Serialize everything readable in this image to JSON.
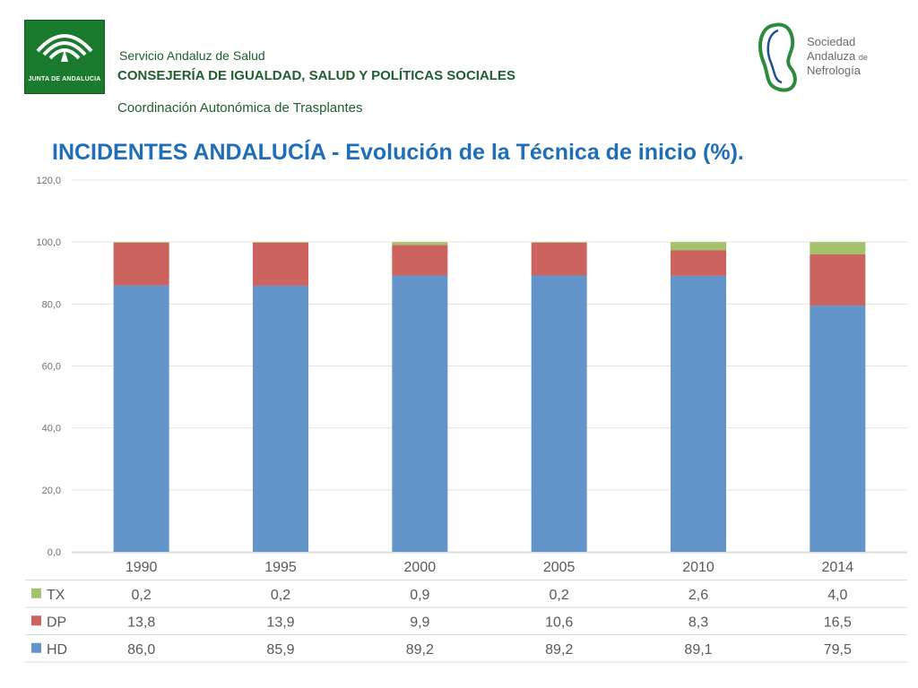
{
  "header": {
    "junta_logo_text": "JUNTA DE ANDALUCIA",
    "service_name": "Servicio Andaluz de Salud",
    "ministry": "CONSEJERÍA DE IGUALDAD, SALUD Y POLÍTICAS SOCIALES",
    "coordination": "Coordinación Autonómica de Trasplantes",
    "society_line1": "Sociedad",
    "society_line2": "Andaluza",
    "society_de": "de",
    "society_line3": "Nefrología"
  },
  "colors": {
    "hd": "#6395cb",
    "dp": "#cc635f",
    "tx": "#a4c26c",
    "junta_green": "#1a7a2e",
    "title_blue": "#1f6fb8"
  },
  "chart_data": {
    "type": "bar",
    "stacked": true,
    "title": "INCIDENTES ANDALUCÍA - Evolución de la Técnica de inicio (%).",
    "categories": [
      "1990",
      "1995",
      "2000",
      "2005",
      "2010",
      "2014"
    ],
    "ylim": [
      0,
      120
    ],
    "yticks": [
      "0,0",
      "20,0",
      "40,0",
      "60,0",
      "80,0",
      "100,0",
      "120,0"
    ],
    "ytick_values": [
      0,
      20,
      40,
      60,
      80,
      100,
      120
    ],
    "grid": true,
    "series": [
      {
        "name": "HD",
        "values": [
          86.0,
          85.9,
          89.2,
          89.2,
          89.1,
          79.5
        ],
        "labels": [
          "86,0",
          "85,9",
          "89,2",
          "89,2",
          "89,1",
          "79,5"
        ]
      },
      {
        "name": "DP",
        "values": [
          13.8,
          13.9,
          9.9,
          10.6,
          8.3,
          16.5
        ],
        "labels": [
          "13,8",
          "13,9",
          "9,9",
          "10,6",
          "8,3",
          "16,5"
        ]
      },
      {
        "name": "TX",
        "values": [
          0.2,
          0.2,
          0.9,
          0.2,
          2.6,
          4.0
        ],
        "labels": [
          "0,2",
          "0,2",
          "0,9",
          "0,2",
          "2,6",
          "4,0"
        ]
      }
    ],
    "table_row_order": [
      "TX",
      "DP",
      "HD"
    ]
  }
}
